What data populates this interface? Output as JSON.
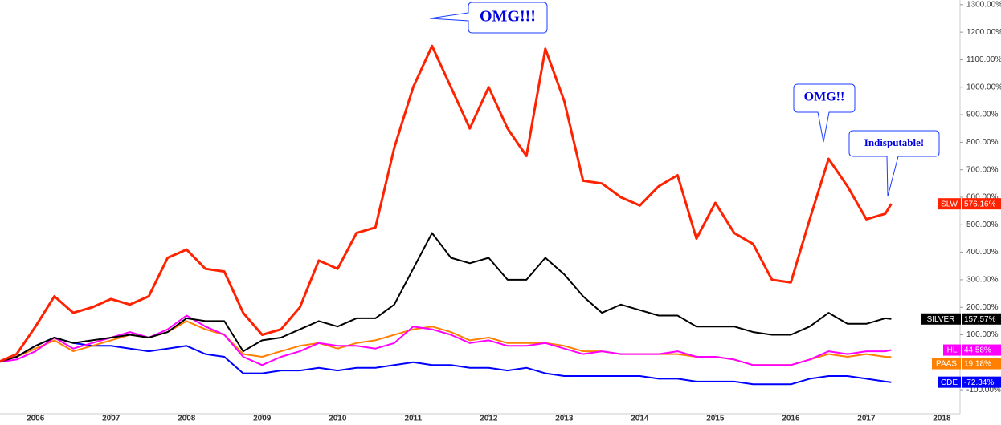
{
  "chart_data": {
    "type": "line",
    "x": [
      2005.5,
      2005.75,
      2006,
      2006.25,
      2006.5,
      2006.75,
      2007,
      2007.25,
      2007.5,
      2007.75,
      2008,
      2008.25,
      2008.5,
      2008.75,
      2009,
      2009.25,
      2009.5,
      2009.75,
      2010,
      2010.25,
      2010.5,
      2010.75,
      2011,
      2011.25,
      2011.5,
      2011.75,
      2012,
      2012.25,
      2012.5,
      2012.75,
      2013,
      2013.25,
      2013.5,
      2013.75,
      2014,
      2014.25,
      2014.5,
      2014.75,
      2015,
      2015.25,
      2015.5,
      2015.75,
      2016,
      2016.25,
      2016.5,
      2016.75,
      2017,
      2017.25,
      2017.33
    ],
    "series": [
      {
        "name": "SLW",
        "color": "#ff2200",
        "values": [
          0,
          30,
          130,
          240,
          180,
          200,
          230,
          210,
          240,
          380,
          410,
          340,
          330,
          180,
          100,
          120,
          200,
          370,
          340,
          470,
          490,
          780,
          1000,
          1150,
          1000,
          850,
          1000,
          850,
          750,
          1140,
          950,
          660,
          650,
          600,
          570,
          640,
          680,
          450,
          580,
          470,
          430,
          300,
          290,
          520,
          740,
          640,
          520,
          540,
          576.16
        ],
        "value_labels": [
          null,
          null,
          null,
          null,
          null,
          null,
          null,
          null,
          null,
          null,
          null,
          null,
          null,
          null,
          null,
          null,
          null,
          null,
          null,
          null,
          null,
          null,
          null,
          null,
          null,
          null,
          null,
          null,
          null,
          null,
          null,
          null,
          null,
          null,
          null,
          null,
          null,
          null,
          null,
          null,
          null,
          null,
          null,
          null,
          null,
          null,
          null,
          null,
          "576.16%"
        ]
      },
      {
        "name": "SILVER",
        "color": "#000000",
        "values": [
          0,
          20,
          60,
          90,
          70,
          80,
          90,
          100,
          90,
          110,
          160,
          150,
          150,
          40,
          80,
          90,
          120,
          150,
          130,
          160,
          160,
          210,
          340,
          470,
          380,
          360,
          380,
          300,
          300,
          380,
          320,
          240,
          180,
          210,
          190,
          170,
          170,
          130,
          130,
          130,
          110,
          100,
          100,
          130,
          180,
          140,
          140,
          160,
          157.57
        ],
        "value_labels": [
          null,
          null,
          null,
          null,
          null,
          null,
          null,
          null,
          null,
          null,
          null,
          null,
          null,
          null,
          null,
          null,
          null,
          null,
          null,
          null,
          null,
          null,
          null,
          null,
          null,
          null,
          null,
          null,
          null,
          null,
          null,
          null,
          null,
          null,
          null,
          null,
          null,
          null,
          null,
          null,
          null,
          null,
          null,
          null,
          null,
          null,
          null,
          null,
          "157.57%"
        ]
      },
      {
        "name": "HL",
        "color": "#ff00ff",
        "values": [
          0,
          10,
          40,
          90,
          50,
          70,
          90,
          110,
          90,
          120,
          170,
          130,
          100,
          20,
          -10,
          20,
          40,
          70,
          60,
          60,
          50,
          70,
          130,
          120,
          100,
          70,
          80,
          60,
          60,
          70,
          50,
          30,
          40,
          30,
          30,
          30,
          40,
          20,
          20,
          10,
          -10,
          -10,
          -10,
          10,
          40,
          30,
          40,
          40,
          44.58
        ],
        "value_labels": [
          null,
          null,
          null,
          null,
          null,
          null,
          null,
          null,
          null,
          null,
          null,
          null,
          null,
          null,
          null,
          null,
          null,
          null,
          null,
          null,
          null,
          null,
          null,
          null,
          null,
          null,
          null,
          null,
          null,
          null,
          null,
          null,
          null,
          null,
          null,
          null,
          null,
          null,
          null,
          null,
          null,
          null,
          null,
          null,
          null,
          null,
          null,
          null,
          "44.58%"
        ]
      },
      {
        "name": "PAAS",
        "color": "#ff8000",
        "values": [
          0,
          20,
          50,
          80,
          40,
          60,
          80,
          100,
          90,
          110,
          150,
          120,
          100,
          30,
          20,
          40,
          60,
          70,
          50,
          70,
          80,
          100,
          120,
          130,
          110,
          80,
          90,
          70,
          70,
          70,
          60,
          40,
          40,
          30,
          30,
          30,
          30,
          20,
          20,
          10,
          -10,
          -10,
          -10,
          10,
          30,
          20,
          30,
          20,
          19.18
        ],
        "value_labels": [
          null,
          null,
          null,
          null,
          null,
          null,
          null,
          null,
          null,
          null,
          null,
          null,
          null,
          null,
          null,
          null,
          null,
          null,
          null,
          null,
          null,
          null,
          null,
          null,
          null,
          null,
          null,
          null,
          null,
          null,
          null,
          null,
          null,
          null,
          null,
          null,
          null,
          null,
          null,
          null,
          null,
          null,
          null,
          null,
          null,
          null,
          null,
          null,
          "19.18%"
        ]
      },
      {
        "name": "CDE",
        "color": "#0000ff",
        "values": [
          0,
          20,
          60,
          90,
          70,
          60,
          60,
          50,
          40,
          50,
          60,
          30,
          20,
          -40,
          -40,
          -30,
          -30,
          -20,
          -30,
          -20,
          -20,
          -10,
          0,
          -10,
          -10,
          -20,
          -20,
          -30,
          -20,
          -40,
          -50,
          -50,
          -50,
          -50,
          -50,
          -60,
          -60,
          -70,
          -70,
          -70,
          -80,
          -80,
          -80,
          -60,
          -50,
          -50,
          -60,
          -70,
          -72.34
        ],
        "value_labels": [
          null,
          null,
          null,
          null,
          null,
          null,
          null,
          null,
          null,
          null,
          null,
          null,
          null,
          null,
          null,
          null,
          null,
          null,
          null,
          null,
          null,
          null,
          null,
          null,
          null,
          null,
          null,
          null,
          null,
          null,
          null,
          null,
          null,
          null,
          null,
          null,
          null,
          null,
          null,
          null,
          null,
          null,
          null,
          null,
          null,
          null,
          null,
          null,
          "-72.34%"
        ]
      }
    ],
    "xlim": [
      2005.53,
      2018.24
    ],
    "xticks": [
      2006,
      2007,
      2008,
      2009,
      2010,
      2011,
      2012,
      2013,
      2014,
      2015,
      2016,
      2017,
      2018
    ],
    "ylim": [
      -187,
      1317
    ],
    "yticks": [
      {
        "value": -100,
        "label": "-100.00%"
      },
      {
        "value": 100,
        "label": "100.00%"
      },
      {
        "value": 200,
        "label": "200.00%"
      },
      {
        "value": 300,
        "label": "300.00%"
      },
      {
        "value": 400,
        "label": "400.00%"
      },
      {
        "value": 500,
        "label": "500.00%"
      },
      {
        "value": 600,
        "label": "600.00%"
      },
      {
        "value": 700,
        "label": "700.00%"
      },
      {
        "value": 800,
        "label": "800.00%"
      },
      {
        "value": 900,
        "label": "900.00%"
      },
      {
        "value": 1000,
        "label": "1000.00%"
      },
      {
        "value": 1100,
        "label": "1100.00%"
      },
      {
        "value": 1200,
        "label": "1200.00%"
      },
      {
        "value": 1300,
        "label": "1300.00%"
      }
    ],
    "annotations": [
      "OMG!!!",
      "OMG!!",
      "Indisputable!"
    ]
  }
}
